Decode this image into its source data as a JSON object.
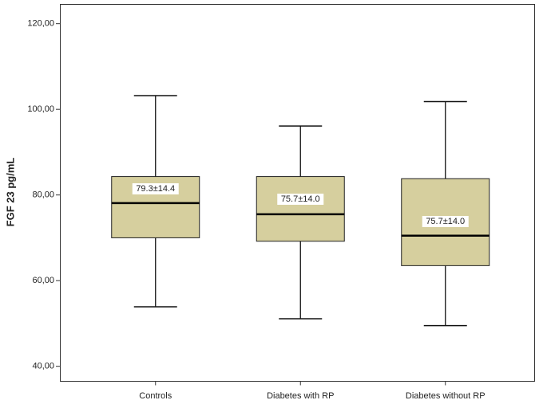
{
  "chart_data": {
    "type": "box",
    "y_label": "FGF 23 pg/mL",
    "categories": [
      "Controls",
      "Diabetes with RP",
      "Diabetes without RP"
    ],
    "whisker_low": [
      53.9,
      51.1,
      49.5
    ],
    "q1": [
      70.0,
      69.2,
      63.5
    ],
    "median": [
      78.1,
      75.5,
      70.5
    ],
    "q3": [
      84.3,
      84.3,
      83.8
    ],
    "whisker_high": [
      103.2,
      96.1,
      101.8
    ],
    "annotations": [
      "79.3±14.4",
      "75.7±14.0",
      "75.7±14.0"
    ],
    "color": "#d6cf9e",
    "ylim": [
      36.5,
      124.5
    ],
    "yticks": [
      {
        "value": 40,
        "label": "40,00"
      },
      {
        "value": 60,
        "label": "60,00"
      },
      {
        "value": 80,
        "label": "80,00"
      },
      {
        "value": 100,
        "label": "100,00"
      },
      {
        "value": 120,
        "label": "120,00"
      }
    ]
  }
}
